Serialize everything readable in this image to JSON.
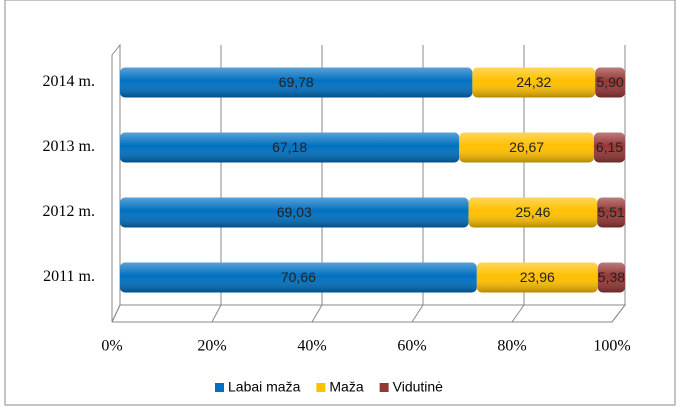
{
  "chart_data": {
    "type": "stacked-bar-horizontal",
    "categories": [
      "2011 m.",
      "2012 m.",
      "2013 m.",
      "2014 m."
    ],
    "series": [
      {
        "name": "Labai maža",
        "color": "#0070c0",
        "values": [
          70.66,
          69.03,
          67.18,
          69.78
        ],
        "value_labels": [
          "70,66",
          "69,03",
          "67,18",
          "69,78"
        ]
      },
      {
        "name": "Maža",
        "color": "#ffc000",
        "values": [
          23.96,
          25.46,
          26.67,
          24.32
        ],
        "value_labels": [
          "23,96",
          "25,46",
          "26,67",
          "24,32"
        ]
      },
      {
        "name": "Vidutinė",
        "color": "#953735",
        "values": [
          5.38,
          5.51,
          6.15,
          5.9
        ],
        "value_labels": [
          "5,38",
          "5,51",
          "6,15",
          "5,90"
        ]
      }
    ],
    "xlim": [
      0,
      100
    ],
    "xticks": [
      {
        "value": 0,
        "label": "0%"
      },
      {
        "value": 20,
        "label": "20%"
      },
      {
        "value": 40,
        "label": "40%"
      },
      {
        "value": 60,
        "label": "60%"
      },
      {
        "value": 80,
        "label": "80%"
      },
      {
        "value": 100,
        "label": "100%"
      }
    ],
    "grid": true,
    "legend": "bottom"
  }
}
